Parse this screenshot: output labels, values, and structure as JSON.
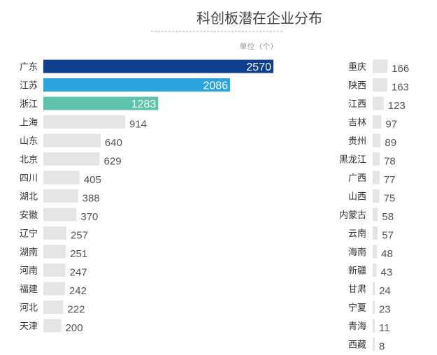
{
  "chart_data": {
    "type": "bar",
    "orientation": "horizontal",
    "title": "科创板潜在企业分布",
    "unit_label": "单位（个）",
    "categories": [
      "广东",
      "江苏",
      "浙江",
      "上海",
      "山东",
      "北京",
      "四川",
      "湖北",
      "安徽",
      "辽宁",
      "湖南",
      "河南",
      "福建",
      "河北",
      "天津",
      "重庆",
      "陕西",
      "江西",
      "吉林",
      "贵州",
      "黑龙江",
      "广西",
      "山西",
      "内蒙古",
      "云南",
      "海南",
      "新疆",
      "甘肃",
      "宁夏",
      "青海",
      "西藏"
    ],
    "values": [
      2570,
      2086,
      1283,
      914,
      640,
      629,
      405,
      388,
      370,
      257,
      251,
      247,
      242,
      222,
      200,
      166,
      163,
      123,
      97,
      89,
      78,
      77,
      75,
      58,
      57,
      48,
      43,
      24,
      23,
      11,
      8
    ],
    "columns": [
      "left",
      "right"
    ],
    "left_column_count": 15,
    "highlight_colors": {
      "广东": "#0e3f8f",
      "江苏": "#2aa5de",
      "浙江": "#5ec3ab"
    },
    "default_color": "#e5e5e5",
    "grid": false,
    "legend": "none"
  }
}
